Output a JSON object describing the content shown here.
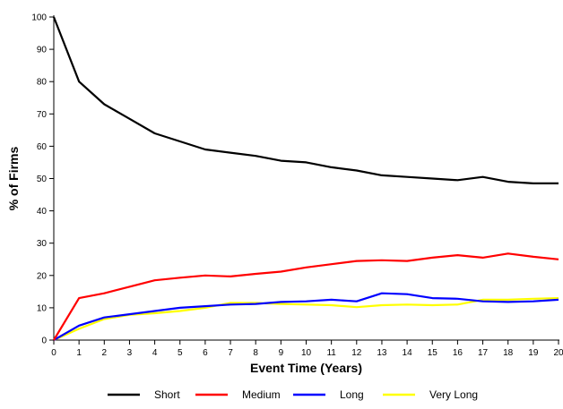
{
  "chart_data": {
    "type": "line",
    "title": "",
    "xlabel": "Event Time (Years)",
    "ylabel": "% of Firms",
    "x": [
      0,
      1,
      2,
      3,
      4,
      5,
      6,
      7,
      8,
      9,
      10,
      11,
      12,
      13,
      14,
      15,
      16,
      17,
      18,
      19,
      20
    ],
    "xlim": [
      0,
      20
    ],
    "ylim": [
      0,
      100
    ],
    "yticks": [
      0,
      10,
      20,
      30,
      40,
      50,
      60,
      70,
      80,
      90,
      100
    ],
    "grid": false,
    "legend_position": "bottom",
    "series": [
      {
        "name": "Short",
        "color": "#000000",
        "values": [
          100,
          80,
          73,
          68.5,
          64,
          61.5,
          59,
          58,
          57,
          55.5,
          55,
          53.5,
          52.5,
          51,
          50.5,
          50,
          49.5,
          50.5,
          49,
          48.5,
          48.5
        ]
      },
      {
        "name": "Medium",
        "color": "#ff0000",
        "values": [
          0,
          13,
          14.5,
          16.5,
          18.5,
          19.3,
          20,
          19.7,
          20.5,
          21.2,
          22.5,
          23.5,
          24.5,
          24.7,
          24.5,
          25.5,
          26.3,
          25.5,
          26.8,
          25.8,
          25
        ]
      },
      {
        "name": "Long",
        "color": "#0000ff",
        "values": [
          0,
          4.5,
          7,
          8,
          9,
          10,
          10.5,
          11,
          11.2,
          11.8,
          12,
          12.5,
          12,
          14.5,
          14.2,
          13,
          12.8,
          12,
          11.8,
          12,
          12.5
        ]
      },
      {
        "name": "Very Long",
        "color": "#ffff00",
        "values": [
          0,
          3.5,
          6.5,
          7.8,
          8.3,
          9,
          10,
          11.5,
          11.5,
          11.2,
          11,
          10.8,
          10.2,
          10.8,
          11,
          10.8,
          11,
          12.5,
          12.5,
          12.8,
          13
        ]
      }
    ]
  }
}
